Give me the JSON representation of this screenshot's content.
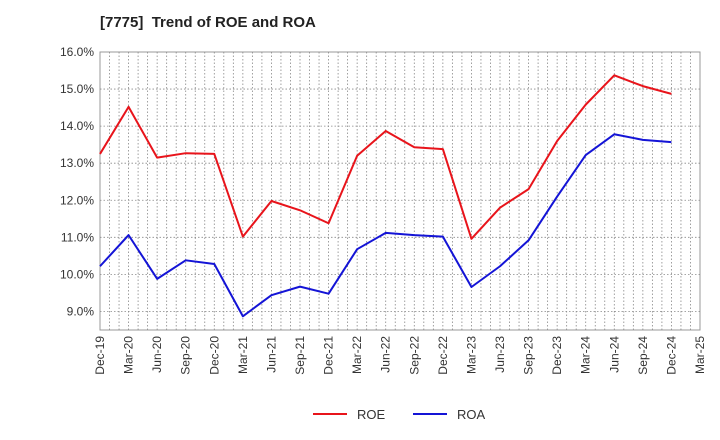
{
  "chart_data": {
    "type": "line",
    "title": "[7775]  Trend of ROE and ROA",
    "categories": [
      "Dec-19",
      "Mar-20",
      "Jun-20",
      "Sep-20",
      "Dec-20",
      "Mar-21",
      "Jun-21",
      "Sep-21",
      "Dec-21",
      "Mar-22",
      "Jun-22",
      "Sep-22",
      "Dec-22",
      "Mar-23",
      "Jun-23",
      "Sep-23",
      "Dec-23",
      "Mar-24",
      "Jun-24",
      "Sep-24",
      "Dec-24",
      "Mar-25"
    ],
    "y_tick_labels": [
      "9.0%",
      "10.0%",
      "11.0%",
      "12.0%",
      "13.0%",
      "14.0%",
      "15.0%",
      "16.0%"
    ],
    "ylim": [
      8.5,
      16.0
    ],
    "y_unit": "%",
    "grid": true,
    "grid_style": "dotted",
    "legend_position": "bottom-center",
    "series": [
      {
        "name": "ROE",
        "color": "#e8141b",
        "values": [
          13.25,
          14.52,
          13.15,
          13.27,
          13.25,
          11.02,
          11.98,
          11.73,
          11.38,
          13.2,
          13.87,
          13.43,
          13.38,
          10.96,
          11.8,
          12.3,
          13.6,
          14.58,
          15.37,
          15.08,
          14.87,
          null
        ]
      },
      {
        "name": "ROA",
        "color": "#1414d6",
        "values": [
          10.22,
          11.06,
          9.88,
          10.38,
          10.28,
          8.87,
          9.44,
          9.67,
          9.48,
          10.68,
          11.12,
          11.06,
          11.02,
          9.66,
          10.22,
          10.92,
          12.1,
          13.22,
          13.78,
          13.63,
          13.57,
          null
        ]
      }
    ]
  }
}
